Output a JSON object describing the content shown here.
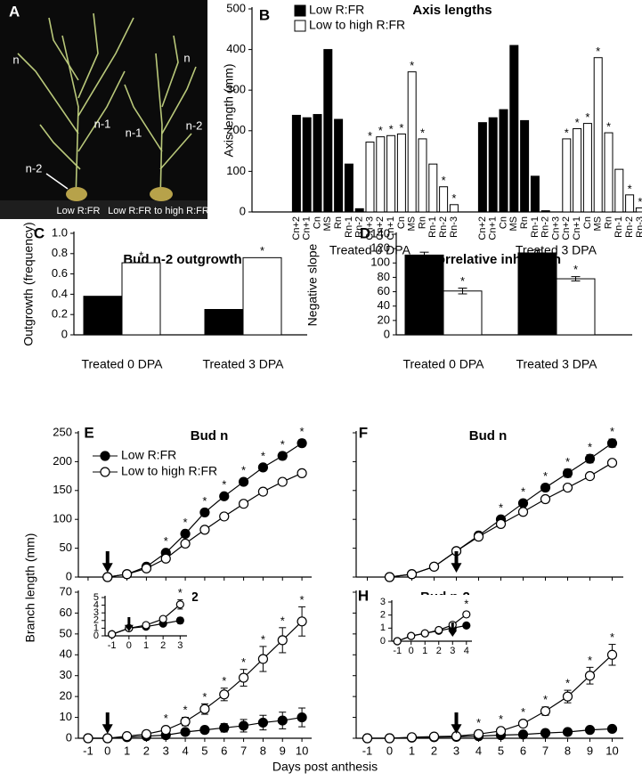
{
  "chart_data": [
    {
      "type": "photo",
      "panel_label": "A",
      "labels": [
        "n",
        "n",
        "n-1",
        "n-1",
        "n-2",
        "n-2",
        "Low R:FR",
        "Low R:FR to high R:FR"
      ]
    },
    {
      "type": "groupbar",
      "panel_label": "B",
      "title": "Axis lengths",
      "ylabel": "Axis length (mm)",
      "groups": [
        "Treated 0 DPA",
        "Treated 3 DPA"
      ],
      "categories": [
        "Cn+2",
        "Cn+1",
        "Cn",
        "MS",
        "Rn",
        "Rn-1",
        "Rn-2",
        "Cn+3",
        "Cn+2",
        "Cn+1",
        "Cn",
        "MS",
        "Rn",
        "Rn-1",
        "Rn-2",
        "Rn-3",
        "Cn+2",
        "Cn+1",
        "Cn",
        "MS",
        "Rn",
        "Rn-1",
        "Rn-2",
        "Cn+3",
        "Cn+2",
        "Cn+1",
        "Cn",
        "MS",
        "Rn",
        "Rn-1",
        "Rn-2",
        "Rn-3"
      ],
      "series": [
        {
          "name": "Low R:FR",
          "color": "#000000",
          "values": [
            238,
            232,
            240,
            400,
            228,
            118,
            8,
            null,
            null,
            null,
            null,
            null,
            null,
            null,
            null,
            null,
            220,
            232,
            252,
            410,
            225,
            88,
            3,
            null,
            null,
            null,
            null,
            null,
            null,
            null,
            null,
            null
          ]
        },
        {
          "name": "Low to high R:FR",
          "color": "#ffffff",
          "values": [
            null,
            null,
            null,
            null,
            null,
            null,
            null,
            172,
            185,
            188,
            192,
            345,
            180,
            118,
            62,
            18,
            null,
            null,
            null,
            null,
            null,
            null,
            null,
            null,
            180,
            205,
            218,
            380,
            195,
            105,
            42,
            10
          ],
          "annotations": [
            null,
            null,
            null,
            null,
            null,
            null,
            null,
            "*",
            "*",
            "*",
            "*",
            "*",
            "*",
            null,
            "*",
            "*",
            null,
            null,
            null,
            null,
            null,
            null,
            null,
            null,
            "*",
            "*",
            "*",
            "*",
            "*",
            null,
            "*",
            "*"
          ]
        }
      ],
      "ylim": [
        0,
        500
      ],
      "yticks": [
        0,
        100,
        200,
        300,
        400,
        500
      ],
      "legend": "upper left"
    },
    {
      "type": "bar",
      "panel_label": "C",
      "title": "Bud n-2 outgrowth",
      "ylabel": "Outgrowth (frequency)",
      "categories": [
        "Treated 0 DPA",
        "Treated 3 DPA"
      ],
      "series": [
        {
          "color": "#000000",
          "values": [
            0.38,
            0.25
          ]
        },
        {
          "color": "#ffffff",
          "values": [
            0.71,
            0.76
          ],
          "annotations": [
            "*",
            "*"
          ]
        }
      ],
      "ylim": [
        0,
        1
      ],
      "yticks": [
        0,
        {
          "value": 0.2,
          "label": "0.2"
        },
        {
          "value": 0.4,
          "label": "0.4"
        },
        {
          "value": 0.6,
          "label": "0.6"
        },
        {
          "value": 0.8,
          "label": "0.8"
        },
        {
          "value": 1,
          "label": "1.0"
        }
      ]
    },
    {
      "type": "bar",
      "panel_label": "D",
      "title": "Correlative inhibition",
      "ylabel": "Negative slope",
      "categories": [
        "Treated 0 DPA",
        "Treated 3 DPA"
      ],
      "series": [
        {
          "color": "#000000",
          "values": [
            111,
            114
          ],
          "errors": [
            4,
            4
          ]
        },
        {
          "color": "#ffffff",
          "values": [
            61,
            78
          ],
          "errors": [
            4,
            3
          ],
          "annotations": [
            "*",
            "*"
          ]
        }
      ],
      "ylim": [
        0,
        140
      ],
      "yticks": [
        0,
        20,
        40,
        60,
        80,
        100,
        120,
        140
      ]
    },
    {
      "type": "line",
      "panel_label": "E",
      "title": "Bud n",
      "ylabel": "Branch length (mm)",
      "x": [
        0,
        1,
        2,
        3,
        4,
        5,
        6,
        7,
        8,
        9,
        10
      ],
      "series": [
        {
          "name": "Low R:FR",
          "color": "#000000",
          "values": [
            0,
            5,
            18,
            42,
            75,
            112,
            140,
            165,
            190,
            210,
            232
          ],
          "errors": [
            0,
            1,
            2,
            4,
            4,
            4,
            5,
            5,
            5,
            6,
            6
          ],
          "annotations": [
            null,
            null,
            null,
            "*",
            "*",
            "*",
            "*",
            "*",
            "*",
            "*",
            "*"
          ]
        },
        {
          "name": "Low to high R:FR",
          "color": "#ffffff",
          "values": [
            0,
            5,
            15,
            32,
            58,
            82,
            105,
            127,
            148,
            165,
            180
          ],
          "errors": [
            0,
            1,
            1,
            2,
            2,
            2,
            2,
            2,
            3,
            3,
            3
          ]
        }
      ],
      "xlim": [
        -1.5,
        10.5
      ],
      "xticks": [
        -1,
        0,
        1,
        2,
        3,
        4,
        5,
        6,
        7,
        8,
        9,
        10
      ],
      "show_xtick_labels": false,
      "ylim": [
        0,
        250
      ],
      "yticks": [
        0,
        50,
        100,
        150,
        200,
        250
      ],
      "show_ytick_labels": true,
      "arrow_x": 0,
      "legend": "upper left"
    },
    {
      "type": "line",
      "panel_label": "F",
      "title": "Bud n",
      "x": [
        0,
        1,
        2,
        3,
        4,
        5,
        6,
        7,
        8,
        9,
        10
      ],
      "series": [
        {
          "color": "#000000",
          "values": [
            0,
            5,
            18,
            45,
            72,
            100,
            128,
            155,
            180,
            205,
            232
          ],
          "errors": [
            0,
            1,
            2,
            3,
            3,
            4,
            5,
            6,
            7,
            7,
            7
          ],
          "annotations": [
            null,
            null,
            null,
            null,
            null,
            "*",
            "*",
            "*",
            "*",
            "*",
            "*"
          ]
        },
        {
          "color": "#ffffff",
          "values": [
            0,
            5,
            18,
            45,
            70,
            92,
            113,
            135,
            155,
            175,
            198
          ],
          "errors": [
            0,
            1,
            1,
            2,
            2,
            3,
            4,
            4,
            4,
            5,
            4
          ]
        }
      ],
      "xlim": [
        -1.5,
        10.5
      ],
      "xticks": [
        -1,
        0,
        1,
        2,
        3,
        4,
        5,
        6,
        7,
        8,
        9,
        10
      ],
      "show_xtick_labels": false,
      "ylim": [
        0,
        250
      ],
      "yticks": [
        0,
        50,
        100,
        150,
        200,
        250
      ],
      "show_ytick_labels": false,
      "arrow_x": 3
    },
    {
      "type": "line",
      "panel_label": "G",
      "title": "Bud n-2",
      "xlabel": "Days post anthesis",
      "x": [
        -1,
        0,
        1,
        2,
        3,
        4,
        5,
        6,
        7,
        8,
        9,
        10
      ],
      "series": [
        {
          "color": "#000000",
          "values": [
            0,
            0,
            0.5,
            1,
            1.5,
            3,
            4,
            5,
            6,
            7.5,
            8.5,
            10
          ],
          "errors": [
            0,
            0,
            0,
            0.3,
            0.5,
            1,
            1.5,
            2,
            3,
            3.5,
            4,
            4.5
          ]
        },
        {
          "color": "#ffffff",
          "values": [
            0,
            0,
            1,
            2,
            4,
            8,
            14,
            21,
            29,
            38,
            47,
            56
          ],
          "errors": [
            0,
            0,
            0.3,
            0.5,
            1,
            2,
            2.5,
            3,
            4,
            6,
            6,
            7
          ],
          "annotations": [
            null,
            null,
            null,
            null,
            "*",
            "*",
            "*",
            "*",
            "*",
            "*",
            "*",
            "*"
          ]
        }
      ],
      "xlim": [
        -1.5,
        10.5
      ],
      "xticks": [
        -1,
        0,
        1,
        2,
        3,
        4,
        5,
        6,
        7,
        8,
        9,
        10
      ],
      "show_xtick_labels": true,
      "ylim": [
        0,
        70
      ],
      "yticks": [
        0,
        10,
        20,
        30,
        40,
        50,
        60,
        70
      ],
      "show_ytick_labels": true,
      "arrow_x": 0,
      "inset": {
        "x": [
          -1,
          0,
          1,
          2,
          3
        ],
        "series": [
          {
            "color": "#000000",
            "values": [
              0.2,
              1,
              1.2,
              1.6,
              2
            ],
            "errors": [
              0,
              0.1,
              0.1,
              0.2,
              0.4
            ]
          },
          {
            "color": "#ffffff",
            "values": [
              0.2,
              1,
              1.4,
              2.2,
              4.1
            ],
            "errors": [
              0,
              0.1,
              0.2,
              0.3,
              0.6
            ],
            "annotations": [
              null,
              null,
              null,
              null,
              "*"
            ]
          }
        ],
        "xlim": [
          -1.4,
          3.4
        ],
        "xticks": [
          -1,
          0,
          1,
          2,
          3
        ],
        "show_xtick_labels": true,
        "ylim": [
          0,
          5
        ],
        "yticks": [
          0,
          1,
          2,
          3,
          4,
          5
        ],
        "show_ytick_labels": true,
        "arrow_x": 0
      }
    },
    {
      "type": "line",
      "panel_label": "H",
      "title": "Bud n-2",
      "x": [
        -1,
        0,
        1,
        2,
        3,
        4,
        5,
        6,
        7,
        8,
        9,
        10
      ],
      "series": [
        {
          "color": "#000000",
          "values": [
            0,
            0,
            0.3,
            0.5,
            0.7,
            1,
            1.5,
            1.8,
            2.5,
            3,
            4,
            4.5
          ],
          "errors": [
            0,
            0,
            0,
            0.1,
            0.2,
            0.3,
            0.4,
            0.5,
            0.5,
            0.5,
            0.6,
            0.8
          ]
        },
        {
          "color": "#ffffff",
          "values": [
            0,
            0,
            0.5,
            0.8,
            1,
            2,
            3.5,
            7,
            13,
            20,
            30,
            40
          ],
          "errors": [
            0,
            0,
            0.2,
            0.3,
            0.5,
            0.8,
            1,
            1.5,
            2,
            3,
            4,
            5
          ],
          "annotations": [
            null,
            null,
            null,
            null,
            null,
            "*",
            "*",
            "*",
            "*",
            "*",
            "*",
            "*"
          ]
        }
      ],
      "xlim": [
        -1.5,
        10.5
      ],
      "xticks": [
        -1,
        0,
        1,
        2,
        3,
        4,
        5,
        6,
        7,
        8,
        9,
        10
      ],
      "show_xtick_labels": true,
      "ylim": [
        0,
        70
      ],
      "yticks": [
        0,
        10,
        20,
        30,
        40,
        50,
        60,
        70
      ],
      "show_ytick_labels": false,
      "arrow_x": 3,
      "inset": {
        "x": [
          -1,
          0,
          1,
          2,
          3,
          4
        ],
        "series": [
          {
            "color": "#000000",
            "values": [
              0,
              0.4,
              0.6,
              0.8,
              1,
              1.2
            ],
            "errors": [
              0,
              0.05,
              0.05,
              0.05,
              0.1,
              0.1
            ]
          },
          {
            "color": "#ffffff",
            "values": [
              0,
              0.4,
              0.6,
              0.85,
              1.25,
              2.05
            ],
            "errors": [
              0,
              0.05,
              0.05,
              0.1,
              0.15,
              0.2
            ],
            "annotations": [
              null,
              null,
              null,
              null,
              null,
              "*"
            ]
          }
        ],
        "xlim": [
          -1.4,
          4.4
        ],
        "xticks": [
          -1,
          0,
          1,
          2,
          3,
          4
        ],
        "show_xtick_labels": true,
        "ylim": [
          0,
          3
        ],
        "yticks": [
          0,
          1,
          2,
          3
        ],
        "show_ytick_labels": true,
        "arrow_x": 3
      }
    }
  ]
}
